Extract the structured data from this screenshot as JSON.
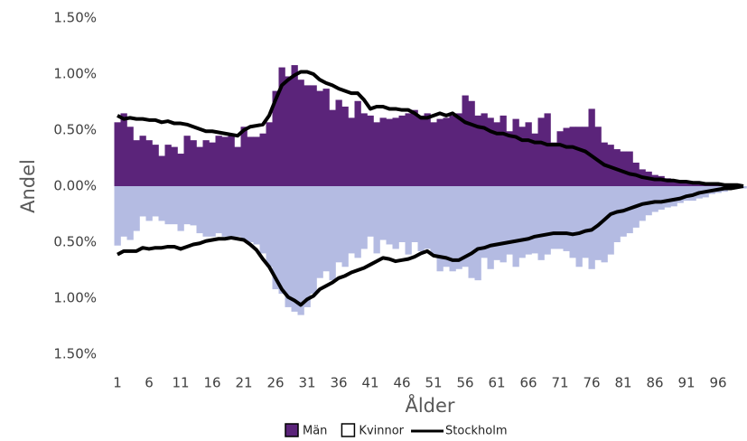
{
  "chart_data": {
    "type": "bar",
    "y_label": "Andel",
    "x_label": "Ålder",
    "categories": [
      "1",
      null,
      null,
      null,
      null,
      "6",
      null,
      null,
      null,
      null,
      "11",
      null,
      null,
      null,
      null,
      "16",
      null,
      null,
      null,
      null,
      "21",
      null,
      null,
      null,
      null,
      "26",
      null,
      null,
      null,
      null,
      "31",
      null,
      null,
      null,
      null,
      "36",
      null,
      null,
      null,
      null,
      "41",
      null,
      null,
      null,
      null,
      "46",
      null,
      null,
      null,
      null,
      "51",
      null,
      null,
      null,
      null,
      "56",
      null,
      null,
      null,
      null,
      "61",
      null,
      null,
      null,
      null,
      "66",
      null,
      null,
      null,
      null,
      "71",
      null,
      null,
      null,
      null,
      "76",
      null,
      null,
      null,
      null,
      "81",
      null,
      null,
      null,
      null,
      "86",
      null,
      null,
      null,
      null,
      "91",
      null,
      null,
      null,
      null,
      "96",
      null,
      null,
      null,
      null
    ],
    "ylim": [
      -1.5,
      1.5
    ],
    "yticks": [
      {
        "value": 1.5,
        "label": "1.50%"
      },
      {
        "value": 1,
        "label": "1.00%"
      },
      {
        "value": 0.5,
        "label": "0.50%"
      },
      {
        "value": 0,
        "label": "0.00%"
      },
      {
        "value": -0.5,
        "label": "0.50%"
      },
      {
        "value": -1,
        "label": "1.00%"
      },
      {
        "value": -1.5,
        "label": "1.50%"
      }
    ],
    "series": [
      {
        "name": "Män",
        "type": "bar",
        "color": "#5b247a",
        "legend_color": "#5b247a",
        "values": [
          0.57,
          0.65,
          0.53,
          0.41,
          0.45,
          0.41,
          0.37,
          0.27,
          0.37,
          0.35,
          0.29,
          0.45,
          0.41,
          0.35,
          0.41,
          0.39,
          0.45,
          0.44,
          0.45,
          0.35,
          0.53,
          0.44,
          0.44,
          0.47,
          0.57,
          0.85,
          1.06,
          0.98,
          1.08,
          0.95,
          0.9,
          0.9,
          0.85,
          0.87,
          0.68,
          0.77,
          0.71,
          0.61,
          0.76,
          0.65,
          0.63,
          0.57,
          0.61,
          0.6,
          0.61,
          0.63,
          0.65,
          0.68,
          0.63,
          0.65,
          0.57,
          0.6,
          0.61,
          0.63,
          0.65,
          0.81,
          0.76,
          0.63,
          0.65,
          0.61,
          0.57,
          0.63,
          0.49,
          0.6,
          0.53,
          0.57,
          0.47,
          0.61,
          0.65,
          0.39,
          0.49,
          0.52,
          0.53,
          0.53,
          0.53,
          0.69,
          0.53,
          0.39,
          0.37,
          0.33,
          0.31,
          0.31,
          0.21,
          0.15,
          0.13,
          0.1,
          0.09,
          0.07,
          0.05,
          0.04,
          0.04,
          0.03,
          0.03,
          0.02,
          0.02,
          0.01,
          0.01,
          0.01,
          0.01,
          0
        ]
      },
      {
        "name": "Kvinnor",
        "type": "bar",
        "color": "#b4bbe2",
        "legend_color": "#ffffff",
        "values": [
          -0.53,
          -0.45,
          -0.48,
          -0.4,
          -0.27,
          -0.31,
          -0.27,
          -0.31,
          -0.34,
          -0.34,
          -0.4,
          -0.34,
          -0.35,
          -0.42,
          -0.45,
          -0.45,
          -0.42,
          -0.45,
          -0.45,
          -0.45,
          -0.48,
          -0.5,
          -0.52,
          -0.6,
          -0.72,
          -0.92,
          -0.96,
          -1.08,
          -1.12,
          -1.15,
          -1.08,
          -0.96,
          -0.82,
          -0.76,
          -0.84,
          -0.68,
          -0.72,
          -0.6,
          -0.64,
          -0.56,
          -0.45,
          -0.6,
          -0.48,
          -0.52,
          -0.56,
          -0.5,
          -0.61,
          -0.5,
          -0.58,
          -0.56,
          -0.61,
          -0.76,
          -0.72,
          -0.76,
          -0.74,
          -0.72,
          -0.82,
          -0.84,
          -0.64,
          -0.74,
          -0.66,
          -0.68,
          -0.61,
          -0.72,
          -0.64,
          -0.61,
          -0.6,
          -0.66,
          -0.61,
          -0.56,
          -0.56,
          -0.58,
          -0.64,
          -0.72,
          -0.64,
          -0.74,
          -0.66,
          -0.68,
          -0.61,
          -0.5,
          -0.45,
          -0.42,
          -0.37,
          -0.31,
          -0.26,
          -0.23,
          -0.21,
          -0.19,
          -0.18,
          -0.15,
          -0.13,
          -0.13,
          -0.11,
          -0.1,
          -0.07,
          -0.06,
          -0.05,
          -0.03,
          -0.02,
          -0.02
        ]
      },
      {
        "name": "Stockholm",
        "type": "line",
        "color": "#000000",
        "values": [
          0.63,
          0.6,
          0.61,
          0.6,
          0.6,
          0.59,
          0.59,
          0.57,
          0.58,
          0.56,
          0.56,
          0.55,
          0.53,
          0.51,
          0.49,
          0.49,
          0.48,
          0.47,
          0.46,
          0.45,
          0.5,
          0.53,
          0.54,
          0.55,
          0.63,
          0.77,
          0.9,
          0.95,
          0.99,
          1.02,
          1.02,
          1,
          0.95,
          0.92,
          0.9,
          0.87,
          0.85,
          0.83,
          0.83,
          0.77,
          0.69,
          0.71,
          0.71,
          0.69,
          0.69,
          0.68,
          0.68,
          0.65,
          0.61,
          0.61,
          0.63,
          0.65,
          0.63,
          0.65,
          0.61,
          0.57,
          0.55,
          0.53,
          0.52,
          0.49,
          0.47,
          0.47,
          0.45,
          0.44,
          0.41,
          0.41,
          0.39,
          0.39,
          0.37,
          0.37,
          0.37,
          0.35,
          0.35,
          0.33,
          0.31,
          0.27,
          0.23,
          0.19,
          0.17,
          0.15,
          0.13,
          0.11,
          0.1,
          0.08,
          0.07,
          0.06,
          0.06,
          0.05,
          0.05,
          0.04,
          0.04,
          0.03,
          0.03,
          0.02,
          0.02,
          0.02,
          0.01,
          0.01,
          0.01,
          0
        ]
      },
      {
        "type": "line",
        "color": "#000000",
        "values": [
          -0.61,
          -0.58,
          -0.58,
          -0.58,
          -0.55,
          -0.56,
          -0.55,
          -0.55,
          -0.54,
          -0.54,
          -0.56,
          -0.54,
          -0.52,
          -0.51,
          -0.49,
          -0.48,
          -0.47,
          -0.47,
          -0.46,
          -0.47,
          -0.48,
          -0.52,
          -0.57,
          -0.65,
          -0.72,
          -0.82,
          -0.92,
          -0.99,
          -1.02,
          -1.06,
          -1.01,
          -0.98,
          -0.92,
          -0.89,
          -0.86,
          -0.82,
          -0.8,
          -0.77,
          -0.75,
          -0.73,
          -0.7,
          -0.67,
          -0.64,
          -0.65,
          -0.67,
          -0.66,
          -0.65,
          -0.63,
          -0.6,
          -0.58,
          -0.62,
          -0.63,
          -0.64,
          -0.66,
          -0.66,
          -0.63,
          -0.6,
          -0.56,
          -0.55,
          -0.53,
          -0.52,
          -0.51,
          -0.5,
          -0.49,
          -0.48,
          -0.47,
          -0.45,
          -0.44,
          -0.43,
          -0.42,
          -0.42,
          -0.42,
          -0.43,
          -0.42,
          -0.4,
          -0.39,
          -0.35,
          -0.3,
          -0.25,
          -0.23,
          -0.22,
          -0.2,
          -0.18,
          -0.16,
          -0.15,
          -0.14,
          -0.14,
          -0.13,
          -0.12,
          -0.11,
          -0.09,
          -0.08,
          -0.06,
          -0.05,
          -0.04,
          -0.03,
          -0.02,
          -0.02,
          -0.01,
          0
        ]
      }
    ]
  }
}
